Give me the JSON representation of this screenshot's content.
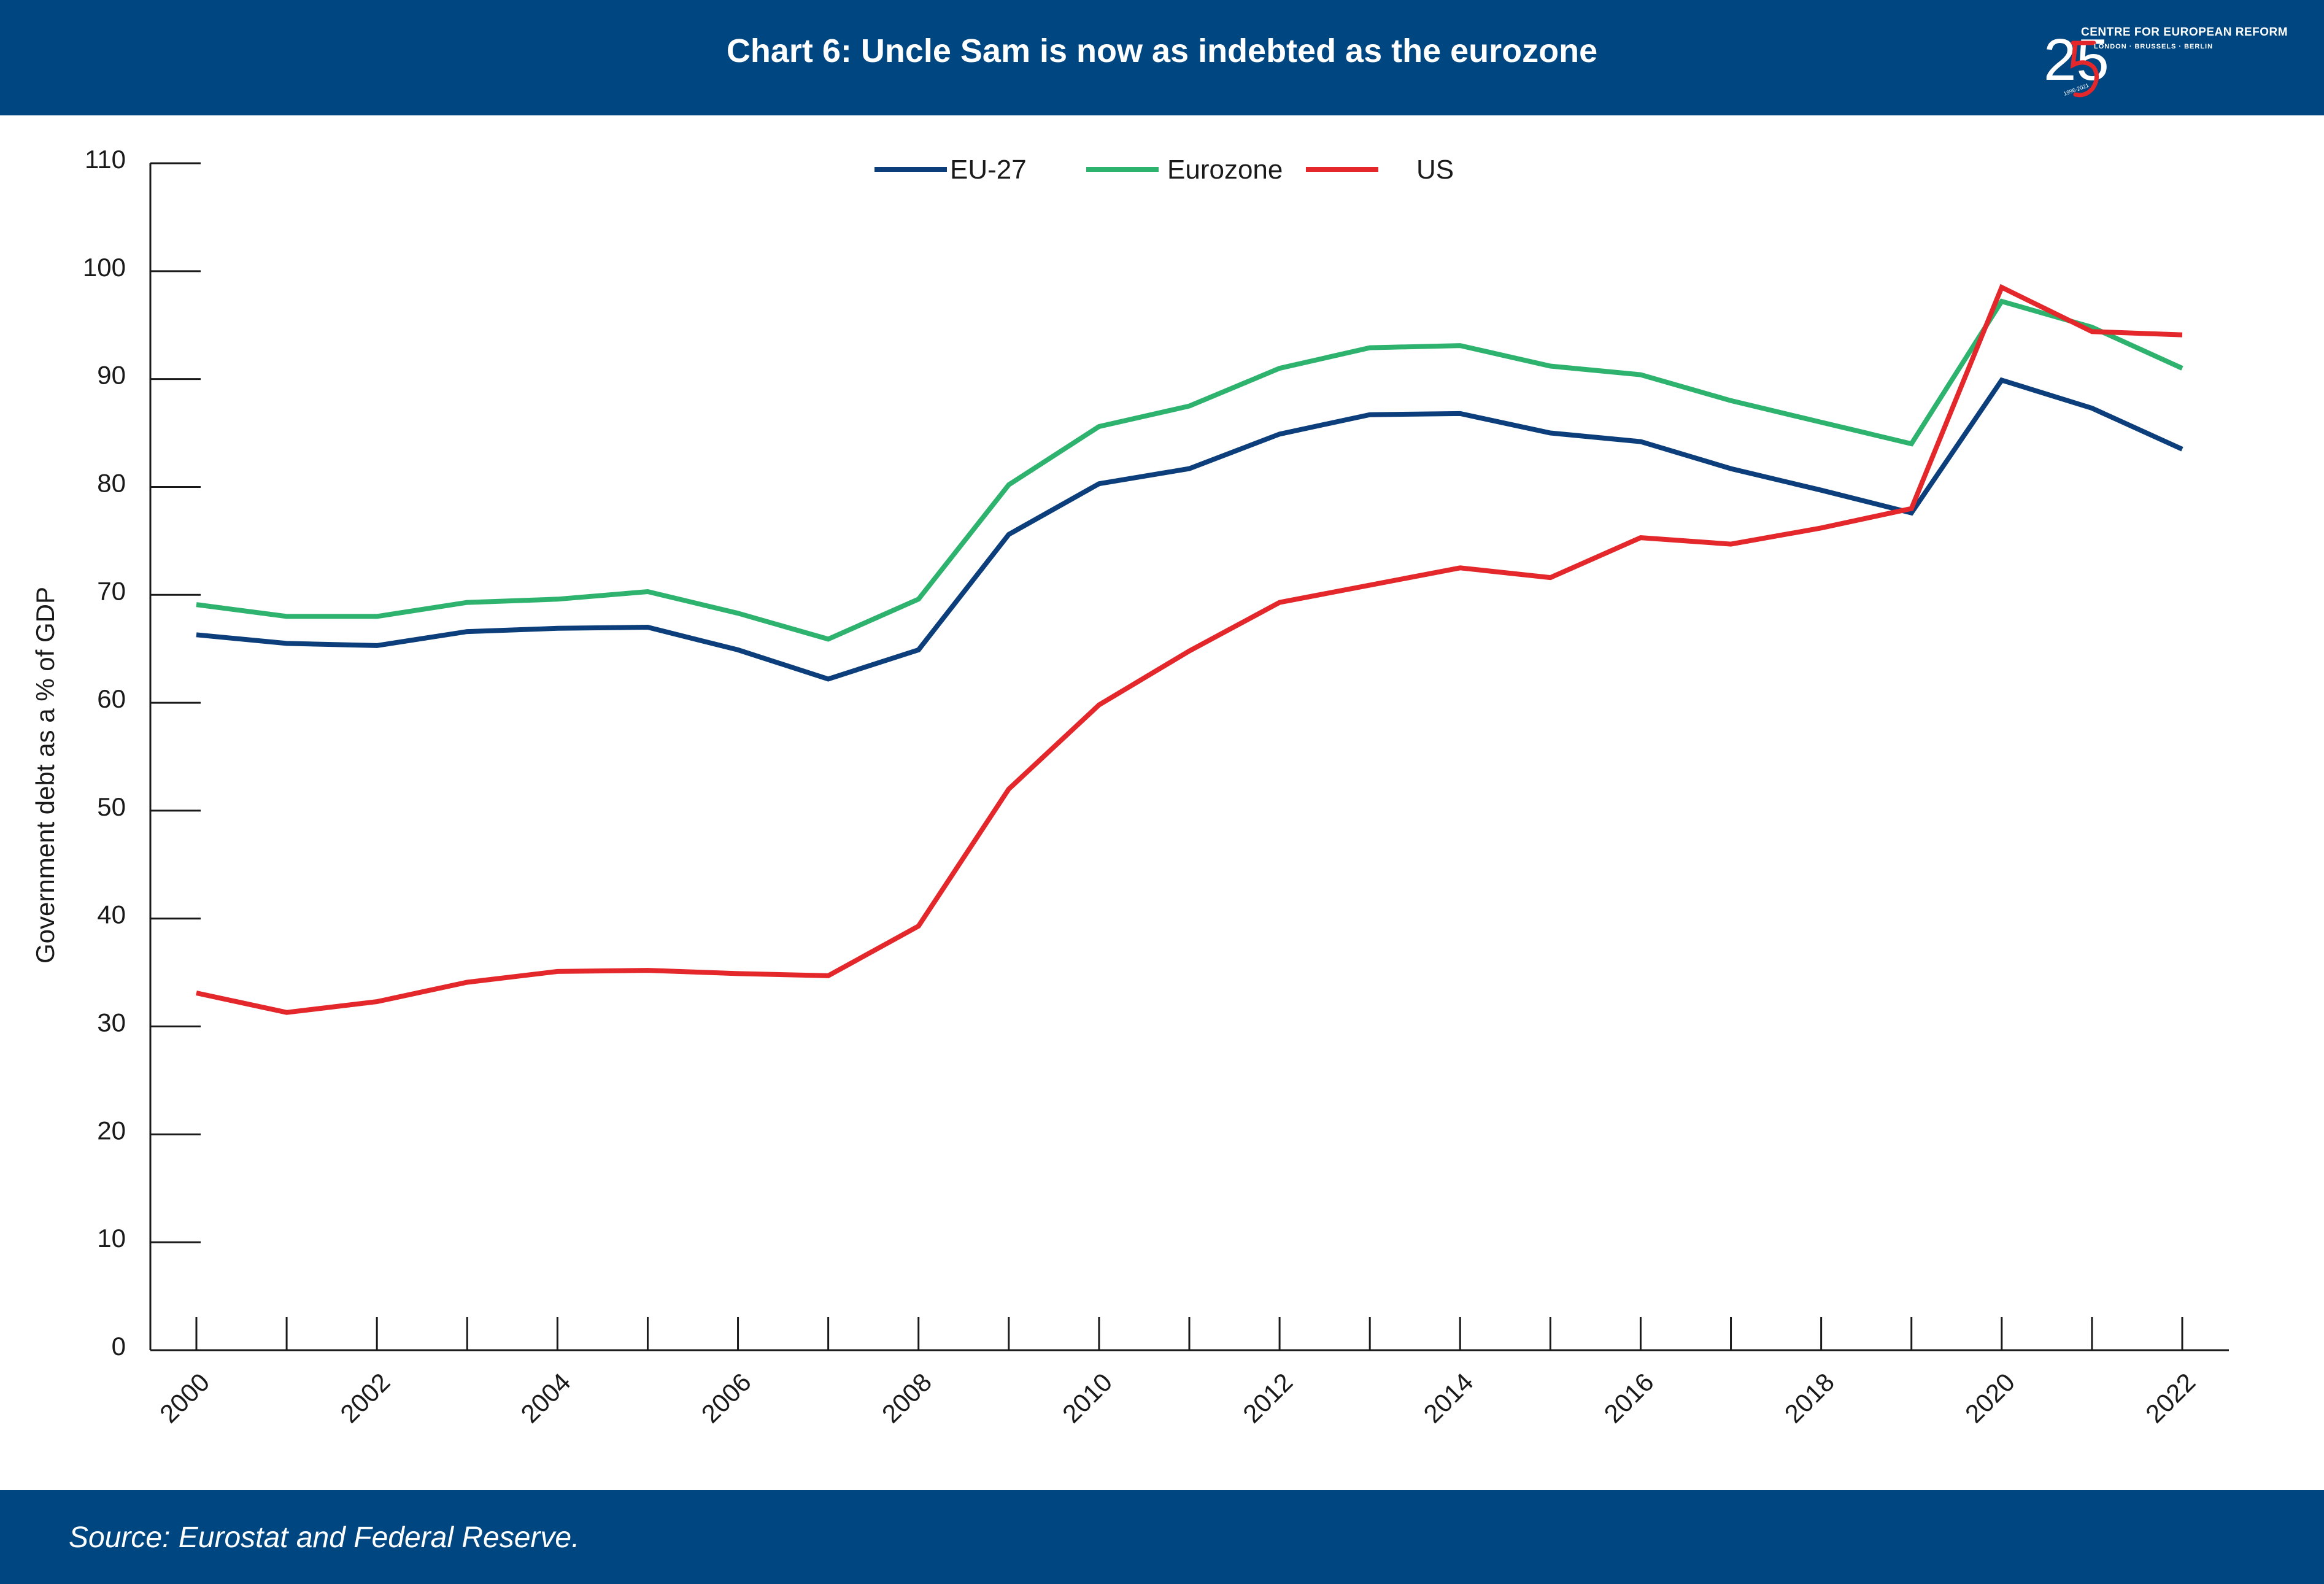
{
  "header": {
    "title": "Chart 6: Uncle Sam is now as indebted as the eurozone"
  },
  "logo": {
    "mark": "25",
    "name": "CENTRE FOR EUROPEAN REFORM",
    "cities": "LONDON · BRUSSELS · BERLIN",
    "years": "1996-2021"
  },
  "colors": {
    "brand": "#004680",
    "eu27": "#0b3e7a",
    "eurozone": "#2eb36f",
    "us": "#e3272b"
  },
  "chart_data": {
    "type": "line",
    "title": "",
    "xlabel": "",
    "ylabel": "Government debt as a % of GDP",
    "ylim": [
      0,
      110
    ],
    "yticks": [
      0,
      10,
      20,
      30,
      40,
      50,
      60,
      70,
      80,
      90,
      100,
      110
    ],
    "xticklabels": [
      "2000",
      "2002",
      "2004",
      "2006",
      "2008",
      "2010",
      "2012",
      "2014",
      "2016",
      "2018",
      "2020",
      "2022"
    ],
    "x": [
      2000,
      2001,
      2002,
      2003,
      2004,
      2005,
      2006,
      2007,
      2008,
      2009,
      2010,
      2011,
      2012,
      2013,
      2014,
      2015,
      2016,
      2017,
      2018,
      2019,
      2020,
      2021,
      2022
    ],
    "legend_position": "top-center",
    "grid": false,
    "series": [
      {
        "name": "EU-27",
        "color": "#0b3e7a",
        "values": [
          66.3,
          65.5,
          65.3,
          66.6,
          66.9,
          67.0,
          64.9,
          62.2,
          64.9,
          75.6,
          80.3,
          81.7,
          84.9,
          86.7,
          86.8,
          85.0,
          84.2,
          81.7,
          79.7,
          77.6,
          89.9,
          87.3,
          83.5
        ]
      },
      {
        "name": "Eurozone",
        "color": "#2eb36f",
        "values": [
          69.1,
          68.0,
          68.0,
          69.3,
          69.6,
          70.3,
          68.3,
          65.9,
          69.6,
          80.2,
          85.6,
          87.5,
          91.0,
          92.9,
          93.1,
          91.2,
          90.4,
          88.0,
          86.0,
          84.0,
          97.2,
          94.8,
          91.0
        ]
      },
      {
        "name": "US",
        "color": "#e3272b",
        "values": [
          33.1,
          31.3,
          32.3,
          34.1,
          35.1,
          35.2,
          34.9,
          34.7,
          39.3,
          52.0,
          59.8,
          64.8,
          69.3,
          70.9,
          72.5,
          71.6,
          75.3,
          74.7,
          76.2,
          78.0,
          98.5,
          94.4,
          94.1
        ]
      }
    ]
  },
  "footer": {
    "source": "Source: Eurostat and Federal Reserve."
  }
}
